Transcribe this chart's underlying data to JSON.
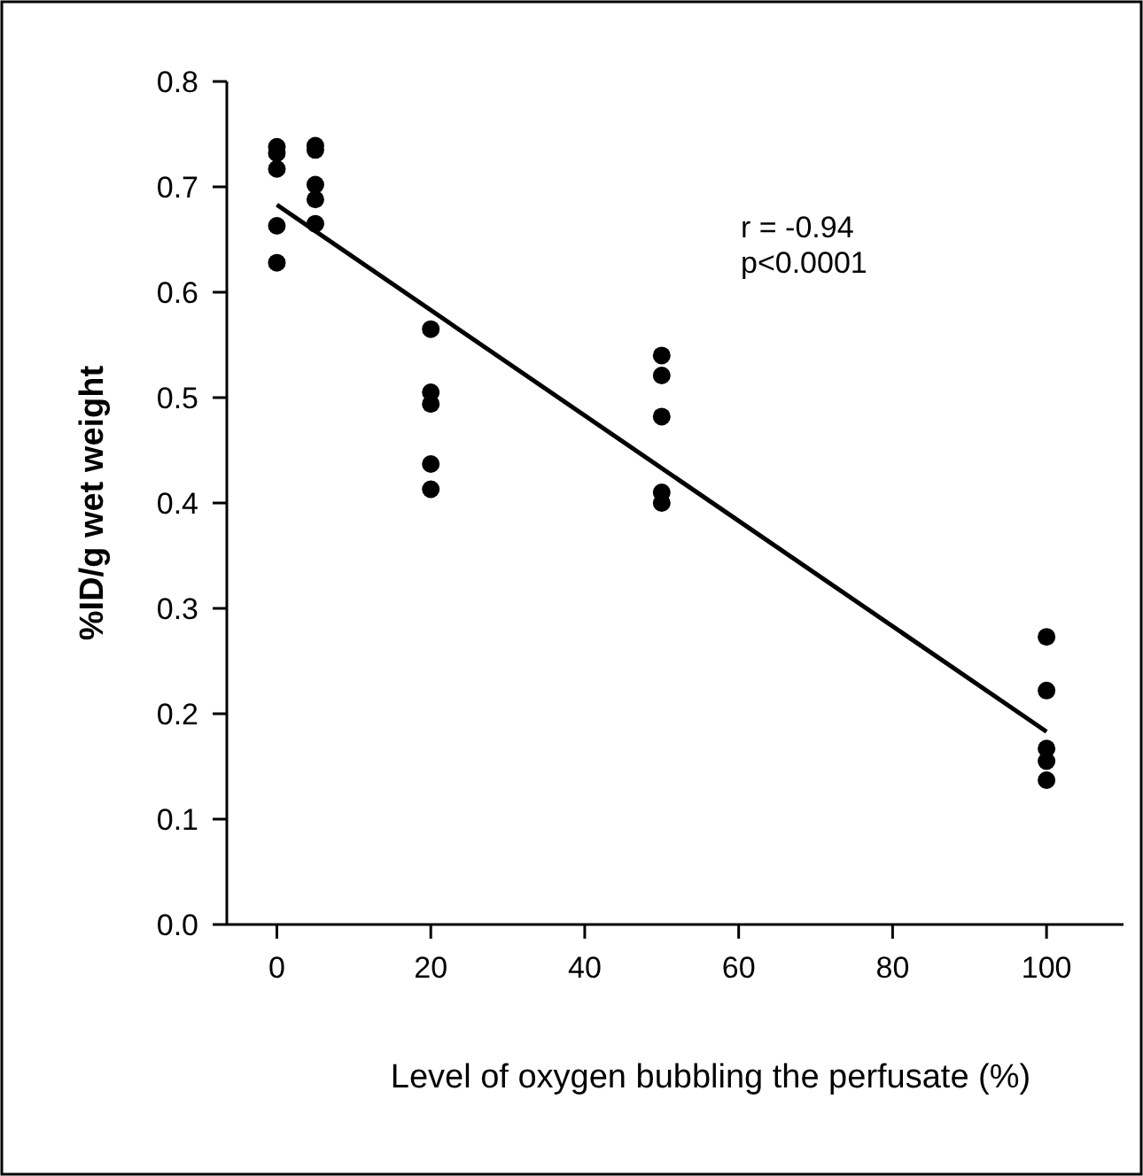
{
  "chart_data": {
    "type": "scatter",
    "xlabel": "Level of oxygen bubbling the perfusate (%)",
    "ylabel": "%ID/g wet weight",
    "xlim": [
      -6.5,
      110
    ],
    "ylim": [
      0,
      0.8
    ],
    "xticks": [
      0,
      20,
      40,
      60,
      80,
      100
    ],
    "yticks": [
      {
        "value": 0,
        "label": "0.0"
      },
      0.1,
      0.2,
      0.3,
      0.4,
      0.5,
      0.6,
      0.7,
      0.8
    ],
    "marker": "circle",
    "grid": false,
    "annotations": [
      "r = -0.94",
      "p<0.0001"
    ],
    "series": [
      {
        "color": "#000000",
        "x": [
          0,
          0,
          0,
          0,
          0,
          5,
          5,
          5,
          5,
          5,
          20,
          20,
          20,
          20,
          20,
          50,
          50,
          50,
          50,
          50,
          100,
          100,
          100,
          100,
          100
        ],
        "values": [
          0.738,
          0.732,
          0.717,
          0.663,
          0.628,
          0.739,
          0.735,
          0.702,
          0.688,
          0.665,
          0.565,
          0.505,
          0.494,
          0.437,
          0.413,
          0.54,
          0.521,
          0.482,
          0.41,
          0.4,
          0.273,
          0.222,
          0.167,
          0.155,
          0.137
        ]
      },
      {
        "type": "line",
        "color": "#000000",
        "x": [
          0,
          100
        ],
        "values": [
          0.683,
          0.183
        ],
        "marker": "none"
      }
    ]
  }
}
